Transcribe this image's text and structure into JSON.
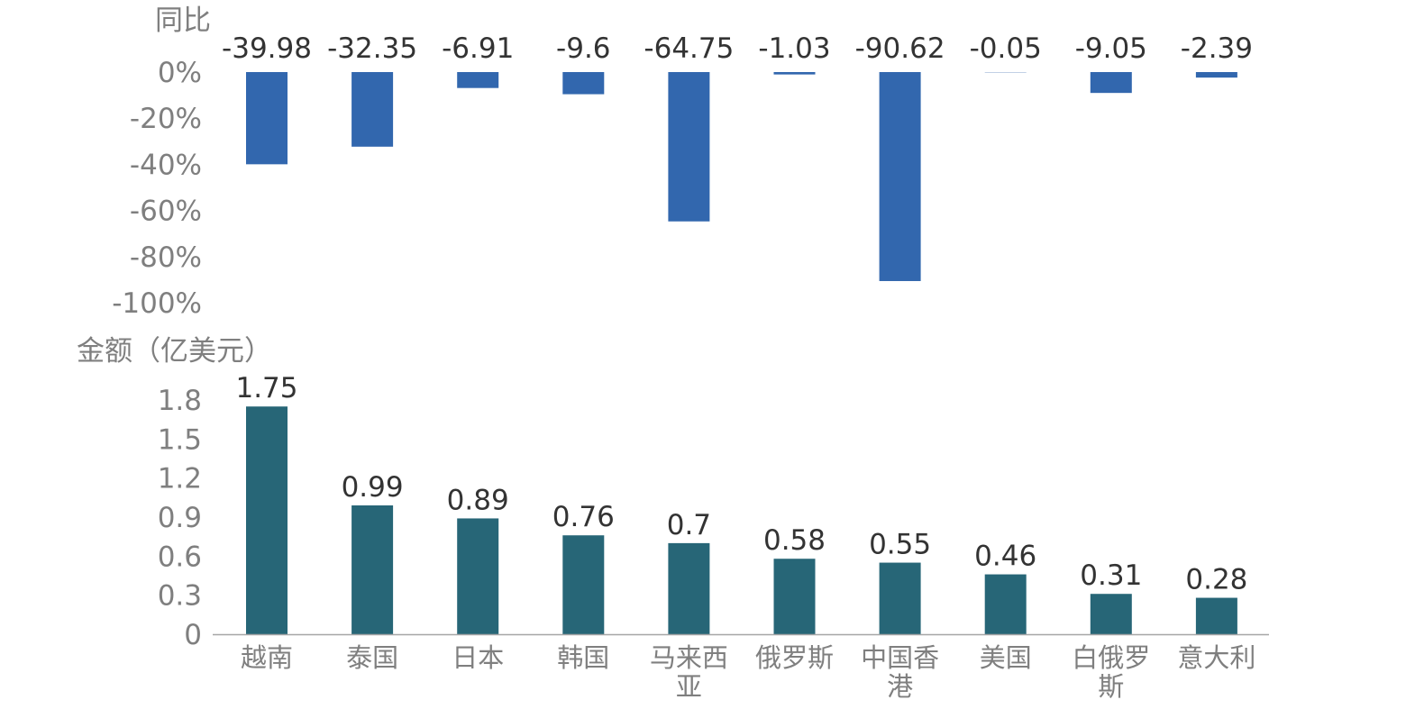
{
  "chart_data": [
    {
      "type": "bar",
      "ylabel": "同比",
      "ylim": [
        -100,
        0
      ],
      "yticks": [
        "0%",
        "-20%",
        "-40%",
        "-60%",
        "-80%",
        "-100%"
      ],
      "ytick_values": [
        0,
        -20,
        -40,
        -60,
        -80,
        -100
      ],
      "categories": [
        "越南",
        "泰国",
        "日本",
        "韩国",
        "马来西亚",
        "俄罗斯",
        "中国香港",
        "美国",
        "白俄罗斯",
        "意大利"
      ],
      "values": [
        -39.98,
        -32.35,
        -6.91,
        -9.6,
        -64.75,
        -1.03,
        -90.62,
        -0.05,
        -9.05,
        -2.39
      ],
      "value_labels": [
        "-39.98",
        "-32.35",
        "-6.91",
        "-9.6",
        "-64.75",
        "-1.03",
        "-90.62",
        "-0.05",
        "-9.05",
        "-2.39"
      ],
      "color": "#3267ae"
    },
    {
      "type": "bar",
      "ylabel": "金额（亿美元）",
      "ylim": [
        0,
        1.8
      ],
      "yticks": [
        "1.8",
        "1.5",
        "1.2",
        "0.9",
        "0.6",
        "0.3",
        "0"
      ],
      "ytick_values": [
        1.8,
        1.5,
        1.2,
        0.9,
        0.6,
        0.3,
        0
      ],
      "categories": [
        "越南",
        "泰国",
        "日本",
        "韩国",
        "马来西亚",
        "俄罗斯",
        "中国香港",
        "美国",
        "白俄罗斯",
        "意大利"
      ],
      "category_lines": [
        [
          "越南"
        ],
        [
          "泰国"
        ],
        [
          "日本"
        ],
        [
          "韩国"
        ],
        [
          "马来西",
          "亚"
        ],
        [
          "俄罗斯"
        ],
        [
          "中国香",
          "港"
        ],
        [
          "美国"
        ],
        [
          "白俄罗",
          "斯"
        ],
        [
          "意大利"
        ]
      ],
      "values": [
        1.75,
        0.99,
        0.89,
        0.76,
        0.7,
        0.58,
        0.55,
        0.46,
        0.31,
        0.28
      ],
      "value_labels": [
        "1.75",
        "0.99",
        "0.89",
        "0.76",
        "0.7",
        "0.58",
        "0.55",
        "0.46",
        "0.31",
        "0.28"
      ],
      "color": "#276677",
      "axis_color": "#a6a6a6"
    }
  ]
}
